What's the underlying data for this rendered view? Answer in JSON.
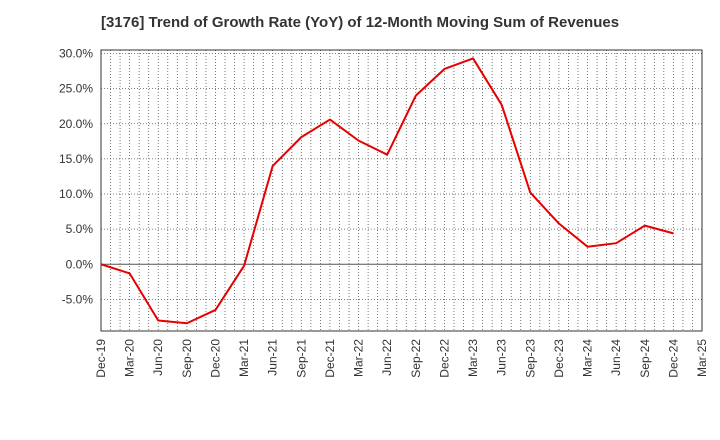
{
  "chart_data": {
    "type": "line",
    "title": "[3176]  Trend of Growth Rate (YoY) of 12-Month Moving Sum of Revenues",
    "xlabel": "",
    "ylabel": "",
    "x_ticks": [
      "Dec-19",
      "Mar-20",
      "Jun-20",
      "Sep-20",
      "Dec-20",
      "Mar-21",
      "Jun-21",
      "Sep-21",
      "Dec-21",
      "Mar-22",
      "Jun-22",
      "Sep-22",
      "Dec-22",
      "Mar-23",
      "Jun-23",
      "Sep-23",
      "Dec-23",
      "Mar-24",
      "Jun-24",
      "Sep-24",
      "Dec-24",
      "Mar-25"
    ],
    "y_ticks": [
      "30.0%",
      "25.0%",
      "20.0%",
      "15.0%",
      "10.0%",
      "5.0%",
      "0.0%",
      "-5.0%"
    ],
    "ylim": [
      -9.5,
      30.5
    ],
    "grid": true,
    "series": [
      {
        "x": [
          "Dec-19",
          "Mar-20",
          "Jun-20",
          "Sep-20",
          "Dec-20",
          "Mar-21",
          "Jun-21",
          "Sep-21",
          "Dec-21",
          "Mar-22",
          "Jun-22",
          "Sep-22",
          "Dec-22",
          "Mar-23",
          "Jun-23",
          "Sep-23",
          "Dec-23",
          "Mar-24",
          "Jun-24",
          "Sep-24",
          "Dec-24"
        ],
        "values": [
          0.0,
          -1.3,
          -8.0,
          -8.4,
          -6.5,
          -0.2,
          14.0,
          18.1,
          20.6,
          17.6,
          15.6,
          24.0,
          27.8,
          29.3,
          22.7,
          10.2,
          5.8,
          2.5,
          3.0,
          5.5,
          4.4
        ],
        "color": "#e60000"
      }
    ]
  }
}
